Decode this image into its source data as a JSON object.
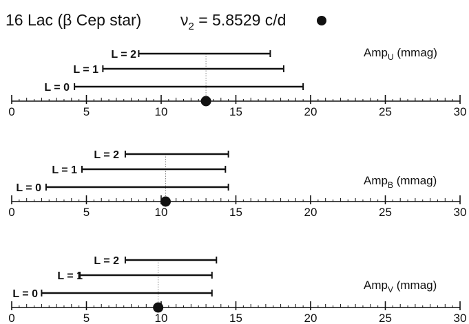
{
  "title": {
    "star": "16 Lac (β Cep star)",
    "freq_symbol": "ν",
    "freq_sub": "2",
    "freq_value": " = 5.8529 c/d"
  },
  "colors": {
    "ink": "#111111",
    "guide": "#888888",
    "background": "#ffffff"
  },
  "chart_data": [
    {
      "type": "range",
      "amp_label": {
        "base": "Amp",
        "sub": "U",
        "unit": " (mmag)"
      },
      "xlim": [
        0,
        30
      ],
      "ticks": [
        0,
        5,
        10,
        15,
        20,
        25,
        30
      ],
      "observed": 13.0,
      "ranges": [
        {
          "label": "L = 2",
          "low": 8.5,
          "high": 17.3
        },
        {
          "label": "L = 1",
          "low": 6.1,
          "high": 18.2
        },
        {
          "label": "L = 0",
          "low": 4.2,
          "high": 19.5
        }
      ]
    },
    {
      "type": "range",
      "amp_label": {
        "base": "Amp",
        "sub": "B",
        "unit": " (mmag)"
      },
      "xlim": [
        0,
        30
      ],
      "ticks": [
        0,
        5,
        10,
        15,
        20,
        25,
        30
      ],
      "observed": 10.3,
      "ranges": [
        {
          "label": "L = 2",
          "low": 7.6,
          "high": 14.5
        },
        {
          "label": "L = 1",
          "low": 4.7,
          "high": 14.3
        },
        {
          "label": "L = 0",
          "low": 2.3,
          "high": 14.5
        }
      ]
    },
    {
      "type": "range",
      "amp_label": {
        "base": "Amp",
        "sub": "V",
        "unit": "  (mmag)"
      },
      "xlim": [
        0,
        30
      ],
      "ticks": [
        0,
        5,
        10,
        15,
        20,
        25,
        30
      ],
      "observed": 9.8,
      "ranges": [
        {
          "label": "L = 2",
          "low": 7.6,
          "high": 13.7
        },
        {
          "label": "L = 1",
          "low": 4.5,
          "high": 13.4
        },
        {
          "label": "L = 0",
          "low": 2.0,
          "high": 13.4
        }
      ]
    }
  ]
}
